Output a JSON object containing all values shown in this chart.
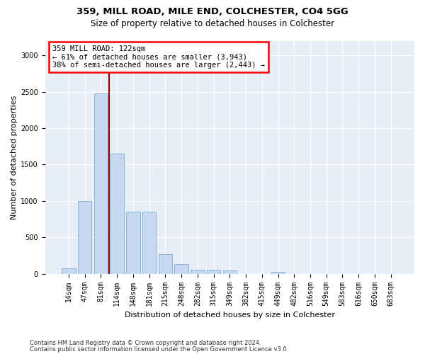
{
  "title_line1": "359, MILL ROAD, MILE END, COLCHESTER, CO4 5GG",
  "title_line2": "Size of property relative to detached houses in Colchester",
  "xlabel": "Distribution of detached houses by size in Colchester",
  "ylabel": "Number of detached properties",
  "footer_line1": "Contains HM Land Registry data © Crown copyright and database right 2024.",
  "footer_line2": "Contains public sector information licensed under the Open Government Licence v3.0.",
  "bar_labels": [
    "14sqm",
    "47sqm",
    "81sqm",
    "114sqm",
    "148sqm",
    "181sqm",
    "215sqm",
    "248sqm",
    "282sqm",
    "315sqm",
    "349sqm",
    "382sqm",
    "415sqm",
    "449sqm",
    "482sqm",
    "516sqm",
    "549sqm",
    "583sqm",
    "616sqm",
    "650sqm",
    "683sqm"
  ],
  "bar_values": [
    75,
    1000,
    2475,
    1650,
    850,
    850,
    265,
    130,
    60,
    55,
    45,
    0,
    0,
    25,
    0,
    0,
    0,
    0,
    0,
    0,
    0
  ],
  "bar_color": "#c5d8ef",
  "bar_edge_color": "#7aadd4",
  "vline_x": 2.5,
  "annotation_text": "359 MILL ROAD: 122sqm\n← 61% of detached houses are smaller (3,943)\n38% of semi-detached houses are larger (2,443) →",
  "annotation_box_color": "white",
  "annotation_box_edge_color": "red",
  "vline_color": "#8b0000",
  "ylim": [
    0,
    3200
  ],
  "yticks": [
    0,
    500,
    1000,
    1500,
    2000,
    2500,
    3000
  ],
  "plot_background_color": "#e8eef7",
  "title_fontsize": 9.5,
  "subtitle_fontsize": 8.5,
  "axis_label_fontsize": 8,
  "tick_fontsize": 7,
  "annotation_fontsize": 7.5
}
